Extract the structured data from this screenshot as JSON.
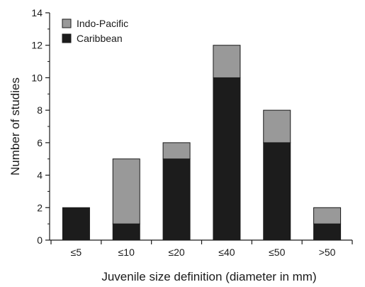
{
  "chart_data": {
    "type": "bar",
    "stacked": true,
    "categories": [
      "≤5",
      "≤10",
      "≤20",
      "≤40",
      "≤50",
      ">50"
    ],
    "series": [
      {
        "name": "Caribbean",
        "values": [
          2,
          1,
          5,
          10,
          6,
          1
        ],
        "color": "#1c1c1c"
      },
      {
        "name": "Indo-Pacific",
        "values": [
          0,
          4,
          1,
          2,
          2,
          1
        ],
        "color": "#999999"
      }
    ],
    "legend_order": [
      "Indo-Pacific",
      "Caribbean"
    ],
    "legend_position": "top-left",
    "xlabel": "Juvenile size definition (diameter in mm)",
    "ylabel": "Number of studies",
    "ylim": [
      0,
      14
    ],
    "yticks": [
      0,
      2,
      4,
      6,
      8,
      10,
      12,
      14
    ],
    "grid": false
  }
}
